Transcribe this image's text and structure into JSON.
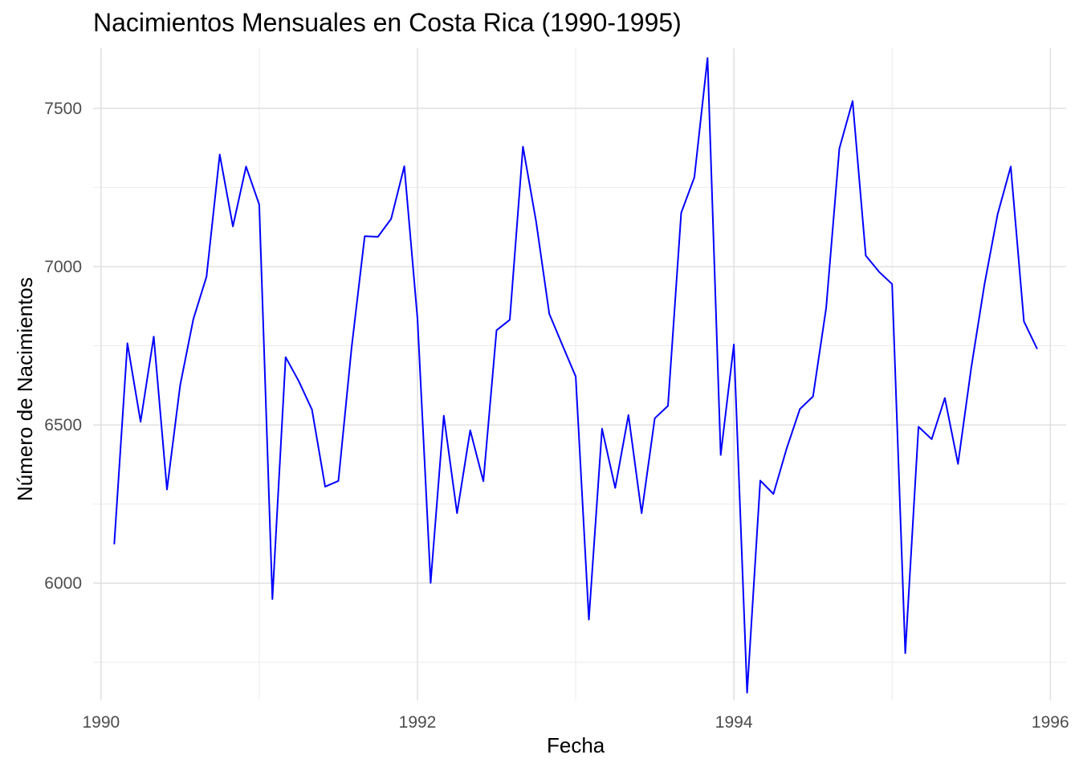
{
  "chart_data": {
    "type": "line",
    "title": "Nacimientos Mensuales en Costa Rica (1990-1995)",
    "xlabel": "Fecha",
    "ylabel": "Número de Nacimientos",
    "xlim": [
      1989.95,
      1996.1
    ],
    "ylim": [
      5630,
      7690
    ],
    "x_ticks": [
      1990,
      1992,
      1994,
      1996
    ],
    "x_tick_labels": [
      "1990",
      "1992",
      "1994",
      "1996"
    ],
    "y_ticks": [
      6000,
      6500,
      7000,
      7500
    ],
    "y_tick_labels": [
      "6000",
      "6500",
      "7000",
      "7500"
    ],
    "grid": true,
    "line_color": "#0000ff",
    "series": [
      {
        "x": [
          "1990-02",
          "1990-03",
          "1990-04",
          "1990-05",
          "1990-06",
          "1990-07",
          "1990-08",
          "1990-09",
          "1990-10",
          "1990-11",
          "1990-12",
          "1991-01",
          "1991-02",
          "1991-03",
          "1991-04",
          "1991-05",
          "1991-06",
          "1991-07",
          "1991-08",
          "1991-09",
          "1991-10",
          "1991-11",
          "1991-12",
          "1992-01",
          "1992-02",
          "1992-03",
          "1992-04",
          "1992-05",
          "1992-06",
          "1992-07",
          "1992-08",
          "1992-09",
          "1992-10",
          "1992-11",
          "1992-12",
          "1993-01",
          "1993-02",
          "1993-03",
          "1993-04",
          "1993-05",
          "1993-06",
          "1993-07",
          "1993-08",
          "1993-09",
          "1993-10",
          "1993-11",
          "1993-12",
          "1994-01",
          "1994-02",
          "1994-03",
          "1994-04",
          "1994-05",
          "1994-06",
          "1994-07",
          "1994-08",
          "1994-09",
          "1994-10",
          "1994-11",
          "1994-12",
          "1995-01",
          "1995-02",
          "1995-03",
          "1995-04",
          "1995-05",
          "1995-06",
          "1995-07",
          "1995-08",
          "1995-09",
          "1995-10",
          "1995-11",
          "1995-12"
        ],
        "y": [
          6123,
          6758,
          6510,
          6779,
          6296,
          6625,
          6834,
          6968,
          7354,
          7127,
          7316,
          7196,
          5950,
          6714,
          6638,
          6548,
          6305,
          6323,
          6743,
          7096,
          7094,
          7151,
          7317,
          6836,
          6001,
          6529,
          6221,
          6483,
          6322,
          6799,
          6832,
          7379,
          7142,
          6851,
          6751,
          6653,
          5885,
          6488,
          6301,
          6531,
          6221,
          6521,
          6560,
          7170,
          7282,
          7659,
          6405,
          6754,
          5654,
          6324,
          6282,
          6425,
          6550,
          6590,
          6870,
          7373,
          7523,
          7035,
          6984,
          6945,
          5779,
          6494,
          6455,
          6585,
          6377,
          6681,
          6943,
          7165,
          7316,
          6827,
          6740
        ]
      }
    ]
  }
}
